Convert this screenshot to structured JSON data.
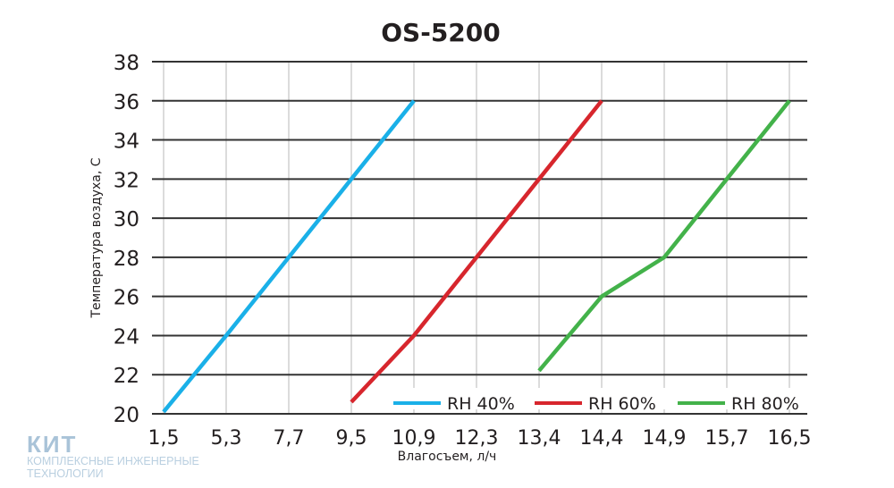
{
  "chart_data": {
    "type": "line",
    "title": "OS-5200",
    "xlabel": "Влагосъем, л/ч",
    "ylabel": "Температура воздуха, С",
    "x_categories": [
      "1,5",
      "5,3",
      "7,7",
      "9,5",
      "10,9",
      "12,3",
      "13,4",
      "14,4",
      "14,9",
      "15,7",
      "16,5"
    ],
    "ylim": [
      20,
      38
    ],
    "yticks": [
      "20",
      "22",
      "24",
      "26",
      "28",
      "30",
      "32",
      "34",
      "36",
      "38"
    ],
    "grid": true,
    "legend_position": "bottom-right",
    "series": [
      {
        "name": "RH 40%",
        "color": "#1ab0e8",
        "points": [
          [
            "1,5",
            20.1
          ],
          [
            "5,3",
            24
          ],
          [
            "7,7",
            28
          ],
          [
            "9,5",
            32
          ],
          [
            "10,9",
            36
          ]
        ]
      },
      {
        "name": "RH 60%",
        "color": "#d7262d",
        "points": [
          [
            "9,5",
            20.6
          ],
          [
            "10,9",
            24
          ],
          [
            "12,3",
            28
          ],
          [
            "13,4",
            32
          ],
          [
            "14,4",
            36
          ]
        ]
      },
      {
        "name": "RH 80%",
        "color": "#43b24a",
        "points": [
          [
            "13,4",
            22.2
          ],
          [
            "14,4",
            26
          ],
          [
            "14,9",
            28
          ],
          [
            "15,7",
            32
          ],
          [
            "16,5",
            36
          ]
        ]
      }
    ]
  },
  "watermark": {
    "brand": "КИТ",
    "line1": "КОМПЛЕКСНЫЕ ИНЖЕНЕРНЫЕ",
    "line2": "ТЕХНОЛОГИИ"
  }
}
